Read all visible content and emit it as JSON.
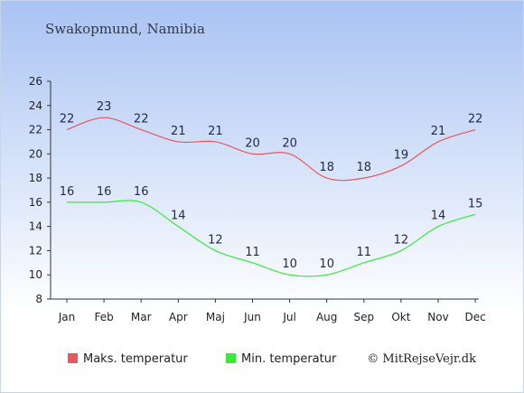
{
  "chart_data": {
    "type": "line",
    "title": "Swakopmund, Namibia",
    "categories": [
      "Jan",
      "Feb",
      "Mar",
      "Apr",
      "Maj",
      "Jun",
      "Jul",
      "Aug",
      "Sep",
      "Okt",
      "Nov",
      "Dec"
    ],
    "y_ticks": [
      8,
      10,
      12,
      14,
      16,
      18,
      20,
      22,
      24,
      26
    ],
    "ylim": [
      8,
      26
    ],
    "series": [
      {
        "name": "Maks. temperatur",
        "color": "#e8575a",
        "values": [
          22,
          23,
          22,
          21,
          21,
          20,
          20,
          18,
          18,
          19,
          21,
          22
        ]
      },
      {
        "name": "Min. temperatur",
        "color": "#3be83b",
        "values": [
          16,
          16,
          16,
          14,
          12,
          11,
          10,
          10,
          11,
          12,
          14,
          15
        ]
      }
    ],
    "legend_position": "bottom-left",
    "copyright": "© MitRejseVejr.dk"
  }
}
